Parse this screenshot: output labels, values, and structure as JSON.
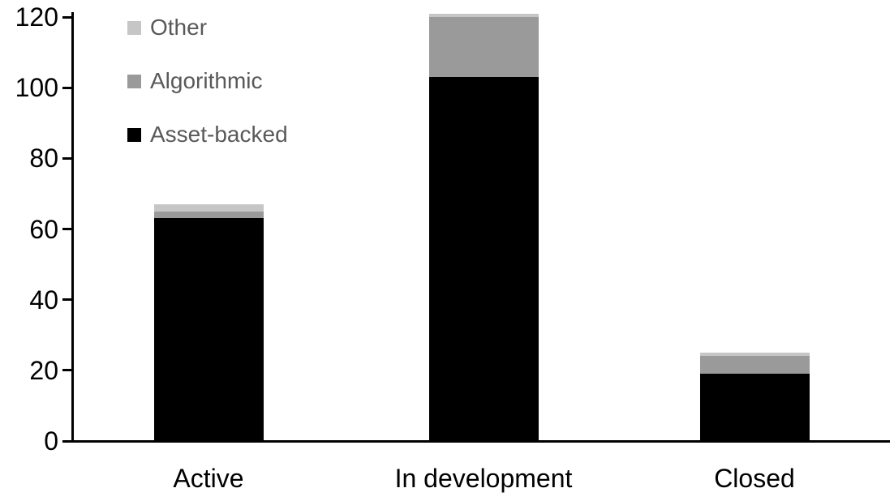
{
  "chart_data": {
    "type": "bar",
    "stacked": true,
    "title": "",
    "xlabel": "",
    "ylabel": "",
    "categories": [
      "Active",
      "In development",
      "Closed"
    ],
    "series": [
      {
        "name": "Asset-backed",
        "color": "#000000",
        "values": [
          63,
          103,
          19
        ]
      },
      {
        "name": "Algorithmic",
        "color": "#9a9a9a",
        "values": [
          2,
          17,
          5
        ]
      },
      {
        "name": "Other",
        "color": "#c6c6c6",
        "values": [
          2,
          1,
          1
        ]
      }
    ],
    "totals": [
      67,
      121,
      25
    ],
    "yticks": [
      0,
      20,
      40,
      60,
      80,
      100,
      120
    ],
    "ylim": [
      0,
      120
    ],
    "grid": false,
    "legend_position": "top-left",
    "legend_order_top_to_bottom": [
      "Other",
      "Algorithmic",
      "Asset-backed"
    ],
    "legend_text_color": "#595959",
    "axis_color": "#000000",
    "background_color": "#ffffff"
  }
}
